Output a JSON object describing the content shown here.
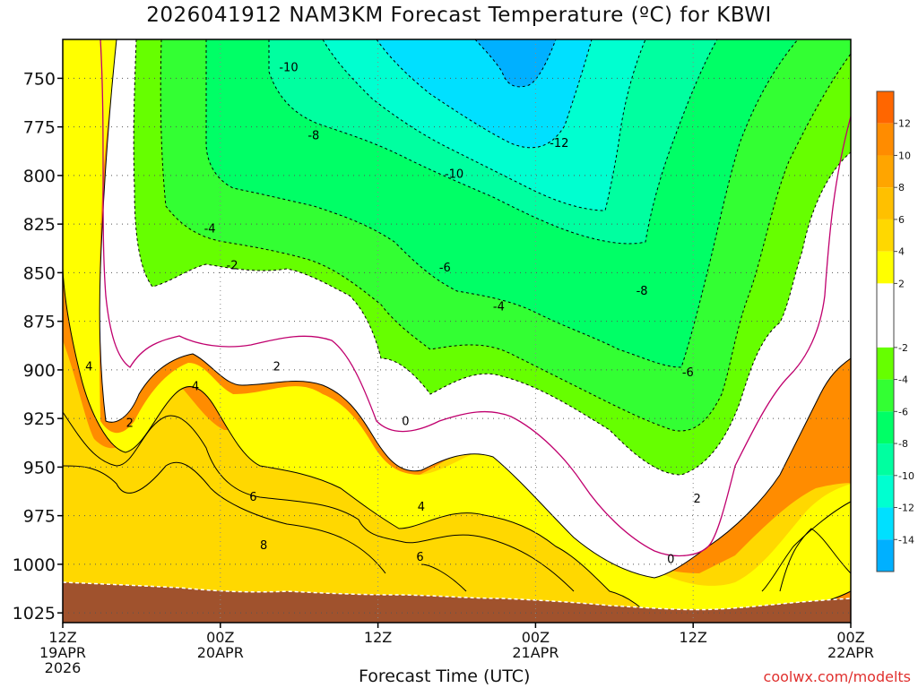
{
  "chart_data": {
    "type": "contour",
    "title": "2026041912 NAM3KM Forecast Temperature (ºC) for KBWI",
    "xlabel": "Forecast Time (UTC)",
    "ylabel": "",
    "y_axis": {
      "ticks": [
        750,
        775,
        800,
        825,
        850,
        875,
        900,
        925,
        950,
        975,
        1000,
        1025
      ],
      "range": [
        730,
        1030
      ],
      "inverted": true
    },
    "x_axis": {
      "range_hours": [
        0,
        60
      ],
      "ticks": [
        {
          "hour": 0,
          "lines": [
            "12Z",
            "19APR",
            "2026"
          ]
        },
        {
          "hour": 12,
          "lines": [
            "00Z",
            "20APR"
          ]
        },
        {
          "hour": 24,
          "lines": [
            "12Z"
          ]
        },
        {
          "hour": 36,
          "lines": [
            "00Z",
            "21APR"
          ]
        },
        {
          "hour": 48,
          "lines": [
            "12Z"
          ]
        },
        {
          "hour": 60,
          "lines": [
            "00Z",
            "22APR"
          ]
        }
      ]
    },
    "grid": true,
    "colorbar": {
      "labels": [
        "12",
        "10",
        "8",
        "6",
        "4",
        "2",
        "-2",
        "-4",
        "-6",
        "-8",
        "-10",
        "-12",
        "-14"
      ],
      "bins": [
        {
          "min": 12,
          "max": 14,
          "color": "#ff6600"
        },
        {
          "min": 10,
          "max": 12,
          "color": "#ff8c00"
        },
        {
          "min": 8,
          "max": 10,
          "color": "#ffa500"
        },
        {
          "min": 6,
          "max": 8,
          "color": "#ffc000"
        },
        {
          "min": 4,
          "max": 6,
          "color": "#ffd800"
        },
        {
          "min": 2,
          "max": 4,
          "color": "#ffff00"
        },
        {
          "min": -2,
          "max": 2,
          "color": "#ffffff"
        },
        {
          "min": -4,
          "max": -2,
          "color": "#66ff00"
        },
        {
          "min": -6,
          "max": -4,
          "color": "#33ff33"
        },
        {
          "min": -8,
          "max": -6,
          "color": "#00ff66"
        },
        {
          "min": -10,
          "max": -8,
          "color": "#00ffa0"
        },
        {
          "min": -12,
          "max": -10,
          "color": "#00ffd0"
        },
        {
          "min": -14,
          "max": -12,
          "color": "#00e0ff"
        },
        {
          "min": -16,
          "max": -14,
          "color": "#00b0ff"
        }
      ]
    },
    "contour_labels": [
      {
        "text": "-10",
        "hour": 17.2,
        "p": 744
      },
      {
        "text": "-8",
        "hour": 19.1,
        "p": 779
      },
      {
        "text": "-12",
        "hour": 37.8,
        "p": 783
      },
      {
        "text": "-10",
        "hour": 29.8,
        "p": 799
      },
      {
        "text": "-4",
        "hour": 11.2,
        "p": 827
      },
      {
        "text": "-2",
        "hour": 12.9,
        "p": 846
      },
      {
        "text": "-6",
        "hour": 29.1,
        "p": 847
      },
      {
        "text": "-8",
        "hour": 44.1,
        "p": 859
      },
      {
        "text": "-4",
        "hour": 33.2,
        "p": 867
      },
      {
        "text": "-6",
        "hour": 47.6,
        "p": 901
      },
      {
        "text": "4",
        "hour": 2.0,
        "p": 898
      },
      {
        "text": "2",
        "hour": 16.3,
        "p": 898
      },
      {
        "text": "4",
        "hour": 10.1,
        "p": 908
      },
      {
        "text": "2",
        "hour": 5.1,
        "p": 927
      },
      {
        "text": "0",
        "hour": 26.1,
        "p": 926
      },
      {
        "text": "6",
        "hour": 14.5,
        "p": 965
      },
      {
        "text": "4",
        "hour": 27.3,
        "p": 970
      },
      {
        "text": "8",
        "hour": 15.3,
        "p": 990
      },
      {
        "text": "6",
        "hour": 27.2,
        "p": 996
      },
      {
        "text": "2",
        "hour": 48.3,
        "p": 966
      },
      {
        "text": "0",
        "hour": 46.3,
        "p": 997
      }
    ]
  },
  "credit": "coolwx.com/modelts"
}
